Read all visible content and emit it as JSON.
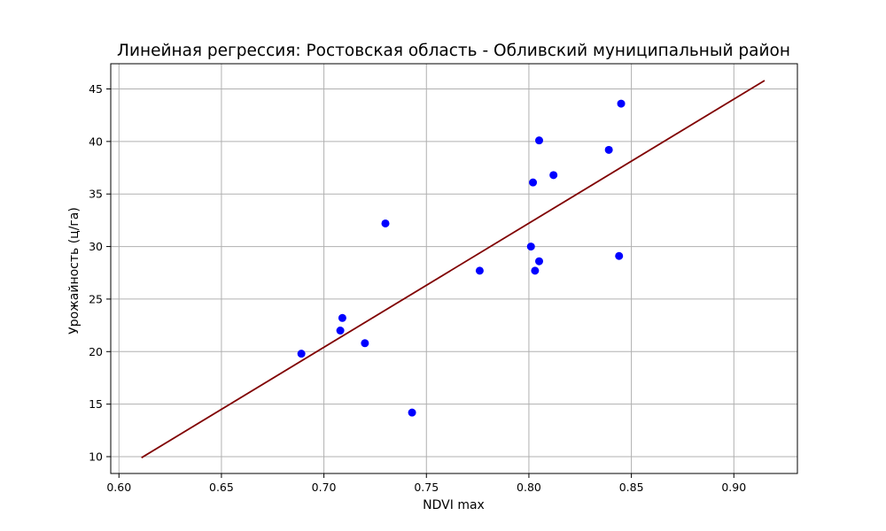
{
  "chart_data": {
    "type": "scatter",
    "title": "Линейная регрессия: Ростовская область - Обливский муниципальный район",
    "xlabel": "NDVI max",
    "ylabel": "Урожайность (ц/га)",
    "xlim": [
      0.596,
      0.931
    ],
    "ylim": [
      8.4,
      47.4
    ],
    "xticks": [
      0.6,
      0.65,
      0.7,
      0.75,
      0.8,
      0.85,
      0.9
    ],
    "xtick_labels": [
      "0.60",
      "0.65",
      "0.70",
      "0.75",
      "0.80",
      "0.85",
      "0.90"
    ],
    "yticks": [
      10,
      15,
      20,
      25,
      30,
      35,
      40,
      45
    ],
    "ytick_labels": [
      "10",
      "15",
      "20",
      "25",
      "30",
      "35",
      "40",
      "45"
    ],
    "grid": true,
    "series": [
      {
        "kind": "scatter",
        "color": "#0000ff",
        "points": [
          {
            "x": 0.689,
            "y": 19.8
          },
          {
            "x": 0.708,
            "y": 22.0
          },
          {
            "x": 0.709,
            "y": 23.2
          },
          {
            "x": 0.72,
            "y": 20.8
          },
          {
            "x": 0.73,
            "y": 32.2
          },
          {
            "x": 0.743,
            "y": 14.2
          },
          {
            "x": 0.776,
            "y": 27.7
          },
          {
            "x": 0.801,
            "y": 30.0
          },
          {
            "x": 0.802,
            "y": 36.1
          },
          {
            "x": 0.803,
            "y": 27.7
          },
          {
            "x": 0.805,
            "y": 28.6
          },
          {
            "x": 0.805,
            "y": 40.1
          },
          {
            "x": 0.812,
            "y": 36.8
          },
          {
            "x": 0.839,
            "y": 39.2
          },
          {
            "x": 0.844,
            "y": 29.1
          },
          {
            "x": 0.845,
            "y": 43.6
          }
        ]
      },
      {
        "kind": "line",
        "color": "#800000",
        "points": [
          {
            "x": 0.611,
            "y": 9.9
          },
          {
            "x": 0.915,
            "y": 45.8
          }
        ]
      }
    ]
  }
}
